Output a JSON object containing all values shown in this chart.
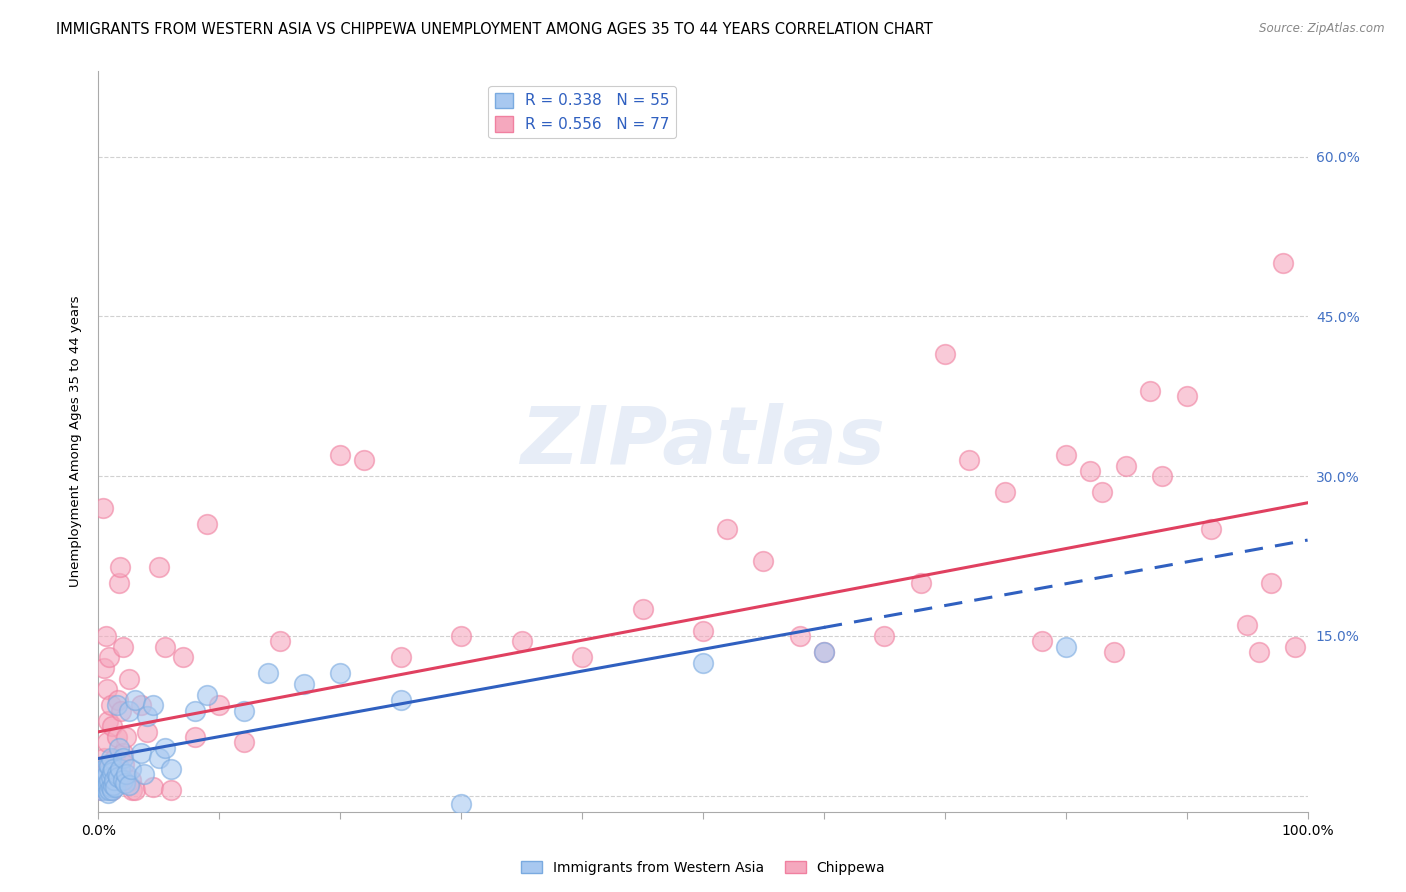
{
  "title": "IMMIGRANTS FROM WESTERN ASIA VS CHIPPEWA UNEMPLOYMENT AMONG AGES 35 TO 44 YEARS CORRELATION CHART",
  "source": "Source: ZipAtlas.com",
  "ylabel": "Unemployment Among Ages 35 to 44 years",
  "xlim": [
    0,
    100
  ],
  "ylim": [
    -1.5,
    68
  ],
  "yticks": [
    0,
    15,
    30,
    45,
    60
  ],
  "xticks": [
    0,
    10,
    20,
    30,
    40,
    50,
    60,
    70,
    80,
    90,
    100
  ],
  "blue_R": 0.338,
  "blue_N": 55,
  "pink_R": 0.556,
  "pink_N": 77,
  "blue_color": "#A8C8F0",
  "pink_color": "#F5A8BE",
  "blue_edge_color": "#7AAAE0",
  "pink_edge_color": "#F080A0",
  "blue_line_color": "#3060C0",
  "pink_line_color": "#E04060",
  "blue_solid_end": 60,
  "blue_trend_x0": 0,
  "blue_trend_y0": 3.5,
  "blue_trend_x1": 100,
  "blue_trend_y1": 24.0,
  "pink_trend_x0": 0,
  "pink_trend_y0": 6.0,
  "pink_trend_x1": 100,
  "pink_trend_y1": 27.5,
  "watermark": "ZIPatlas",
  "background_color": "#FFFFFF",
  "grid_color": "#CCCCCC",
  "title_fontsize": 10.5,
  "axis_label_fontsize": 9.5,
  "tick_fontsize": 9,
  "legend_fontsize": 11,
  "right_ytick_color": "#4472C4",
  "blue_scatter": [
    [
      0.2,
      0.5
    ],
    [
      0.3,
      1.0
    ],
    [
      0.4,
      0.8
    ],
    [
      0.5,
      1.5
    ],
    [
      0.5,
      2.5
    ],
    [
      0.6,
      0.5
    ],
    [
      0.6,
      1.8
    ],
    [
      0.7,
      1.0
    ],
    [
      0.7,
      2.0
    ],
    [
      0.8,
      0.3
    ],
    [
      0.8,
      1.2
    ],
    [
      0.8,
      3.0
    ],
    [
      0.9,
      0.5
    ],
    [
      0.9,
      1.5
    ],
    [
      0.9,
      2.8
    ],
    [
      1.0,
      0.8
    ],
    [
      1.0,
      1.8
    ],
    [
      1.0,
      3.5
    ],
    [
      1.1,
      0.5
    ],
    [
      1.1,
      2.2
    ],
    [
      1.2,
      1.0
    ],
    [
      1.2,
      2.5
    ],
    [
      1.3,
      1.5
    ],
    [
      1.4,
      0.8
    ],
    [
      1.5,
      2.0
    ],
    [
      1.5,
      8.5
    ],
    [
      1.6,
      1.8
    ],
    [
      1.7,
      4.5
    ],
    [
      1.8,
      2.5
    ],
    [
      2.0,
      1.5
    ],
    [
      2.0,
      3.5
    ],
    [
      2.2,
      1.2
    ],
    [
      2.3,
      2.0
    ],
    [
      2.5,
      1.0
    ],
    [
      2.5,
      8.0
    ],
    [
      2.7,
      2.5
    ],
    [
      3.0,
      9.0
    ],
    [
      3.5,
      4.0
    ],
    [
      3.8,
      2.0
    ],
    [
      4.0,
      7.5
    ],
    [
      4.5,
      8.5
    ],
    [
      5.0,
      3.5
    ],
    [
      5.5,
      4.5
    ],
    [
      6.0,
      2.5
    ],
    [
      8.0,
      8.0
    ],
    [
      9.0,
      9.5
    ],
    [
      12.0,
      8.0
    ],
    [
      14.0,
      11.5
    ],
    [
      17.0,
      10.5
    ],
    [
      20.0,
      11.5
    ],
    [
      25.0,
      9.0
    ],
    [
      30.0,
      -0.8
    ],
    [
      50.0,
      12.5
    ],
    [
      60.0,
      13.5
    ],
    [
      80.0,
      14.0
    ]
  ],
  "pink_scatter": [
    [
      0.2,
      0.5
    ],
    [
      0.3,
      1.5
    ],
    [
      0.4,
      27.0
    ],
    [
      0.5,
      3.5
    ],
    [
      0.5,
      12.0
    ],
    [
      0.6,
      1.0
    ],
    [
      0.6,
      15.0
    ],
    [
      0.7,
      5.0
    ],
    [
      0.7,
      10.0
    ],
    [
      0.8,
      2.5
    ],
    [
      0.8,
      7.0
    ],
    [
      0.9,
      1.5
    ],
    [
      0.9,
      13.0
    ],
    [
      1.0,
      3.0
    ],
    [
      1.0,
      8.5
    ],
    [
      1.1,
      0.5
    ],
    [
      1.1,
      6.5
    ],
    [
      1.2,
      2.0
    ],
    [
      1.3,
      1.8
    ],
    [
      1.4,
      3.5
    ],
    [
      1.5,
      5.5
    ],
    [
      1.6,
      9.0
    ],
    [
      1.7,
      20.0
    ],
    [
      1.8,
      21.5
    ],
    [
      1.9,
      8.0
    ],
    [
      2.0,
      4.0
    ],
    [
      2.0,
      14.0
    ],
    [
      2.1,
      3.0
    ],
    [
      2.3,
      5.5
    ],
    [
      2.5,
      11.0
    ],
    [
      2.7,
      1.5
    ],
    [
      2.8,
      0.5
    ],
    [
      3.0,
      0.5
    ],
    [
      3.5,
      8.5
    ],
    [
      4.0,
      6.0
    ],
    [
      4.5,
      0.8
    ],
    [
      5.0,
      21.5
    ],
    [
      5.5,
      14.0
    ],
    [
      6.0,
      0.5
    ],
    [
      7.0,
      13.0
    ],
    [
      8.0,
      5.5
    ],
    [
      9.0,
      25.5
    ],
    [
      10.0,
      8.5
    ],
    [
      12.0,
      5.0
    ],
    [
      15.0,
      14.5
    ],
    [
      20.0,
      32.0
    ],
    [
      22.0,
      31.5
    ],
    [
      25.0,
      13.0
    ],
    [
      30.0,
      15.0
    ],
    [
      35.0,
      14.5
    ],
    [
      40.0,
      13.0
    ],
    [
      45.0,
      17.5
    ],
    [
      50.0,
      15.5
    ],
    [
      52.0,
      25.0
    ],
    [
      55.0,
      22.0
    ],
    [
      58.0,
      15.0
    ],
    [
      60.0,
      13.5
    ],
    [
      65.0,
      15.0
    ],
    [
      68.0,
      20.0
    ],
    [
      70.0,
      41.5
    ],
    [
      72.0,
      31.5
    ],
    [
      75.0,
      28.5
    ],
    [
      78.0,
      14.5
    ],
    [
      80.0,
      32.0
    ],
    [
      82.0,
      30.5
    ],
    [
      83.0,
      28.5
    ],
    [
      84.0,
      13.5
    ],
    [
      85.0,
      31.0
    ],
    [
      87.0,
      38.0
    ],
    [
      88.0,
      30.0
    ],
    [
      90.0,
      37.5
    ],
    [
      92.0,
      25.0
    ],
    [
      95.0,
      16.0
    ],
    [
      96.0,
      13.5
    ],
    [
      97.0,
      20.0
    ],
    [
      98.0,
      50.0
    ],
    [
      99.0,
      14.0
    ]
  ]
}
